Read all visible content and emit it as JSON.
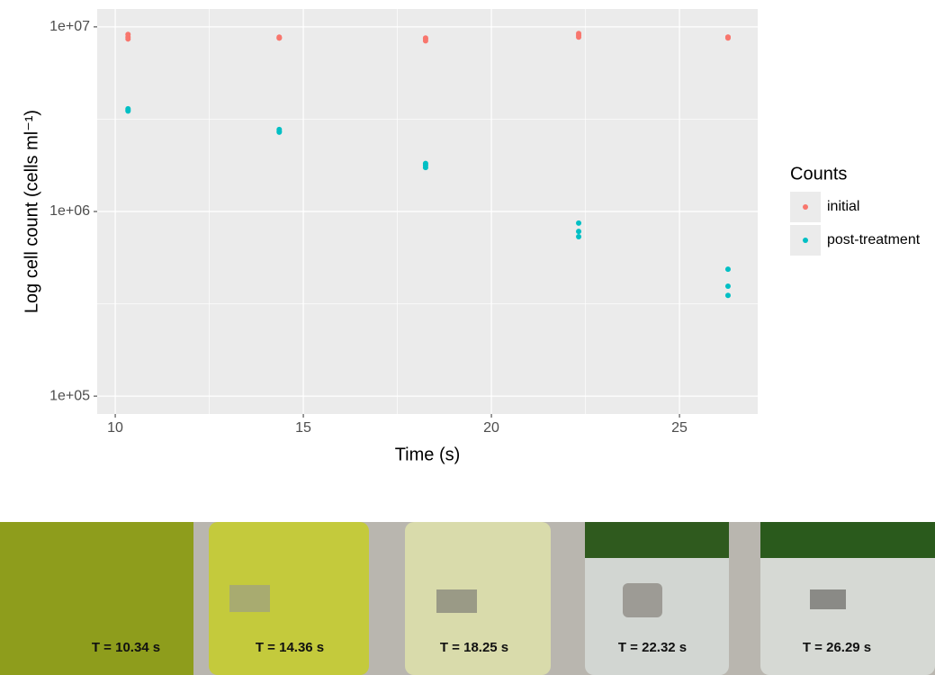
{
  "chart_data": {
    "type": "scatter",
    "x_label": "Time (s)",
    "y_label": "Log cell count (cells ml⁻¹)",
    "legend_title": "Counts",
    "legend": "right",
    "grid": true,
    "log_y": true,
    "xlim": [
      9.52,
      27.08
    ],
    "xticks": [
      10,
      15,
      20,
      25
    ],
    "ylim": [
      80000,
      12500000
    ],
    "yticks": [
      {
        "value": 100000,
        "label": "1e+05"
      },
      {
        "value": 1000000,
        "label": "1e+06"
      },
      {
        "value": 10000000,
        "label": "1e+07"
      }
    ],
    "series": [
      {
        "name": "initial",
        "color": "#f8766d",
        "x": [
          10.34,
          10.34,
          10.34,
          14.36,
          14.36,
          14.36,
          18.25,
          18.25,
          18.25,
          22.32,
          22.32,
          22.32,
          26.29,
          26.29,
          26.29
        ],
        "values": [
          9100000,
          8600000,
          8800000,
          8800000,
          8700000,
          8700000,
          8700000,
          8400000,
          8600000,
          9200000,
          8800000,
          9000000,
          8800000,
          8700000,
          8800000
        ]
      },
      {
        "name": "post-treatment",
        "color": "#00bfc4",
        "x": [
          10.34,
          10.34,
          10.34,
          14.36,
          14.36,
          14.36,
          18.25,
          18.25,
          18.25,
          22.32,
          22.32,
          22.32,
          26.29,
          26.29,
          26.29
        ],
        "values": [
          3600000,
          3500000,
          3550000,
          2780000,
          2690000,
          2720000,
          1820000,
          1730000,
          1780000,
          865000,
          780000,
          730000,
          487000,
          394000,
          351000
        ]
      }
    ]
  },
  "photo": {
    "captions": [
      "T = 10.34 s",
      "T = 14.36 s",
      "T = 18.25 s",
      "T = 22.32 s",
      "T = 26.29 s"
    ]
  }
}
